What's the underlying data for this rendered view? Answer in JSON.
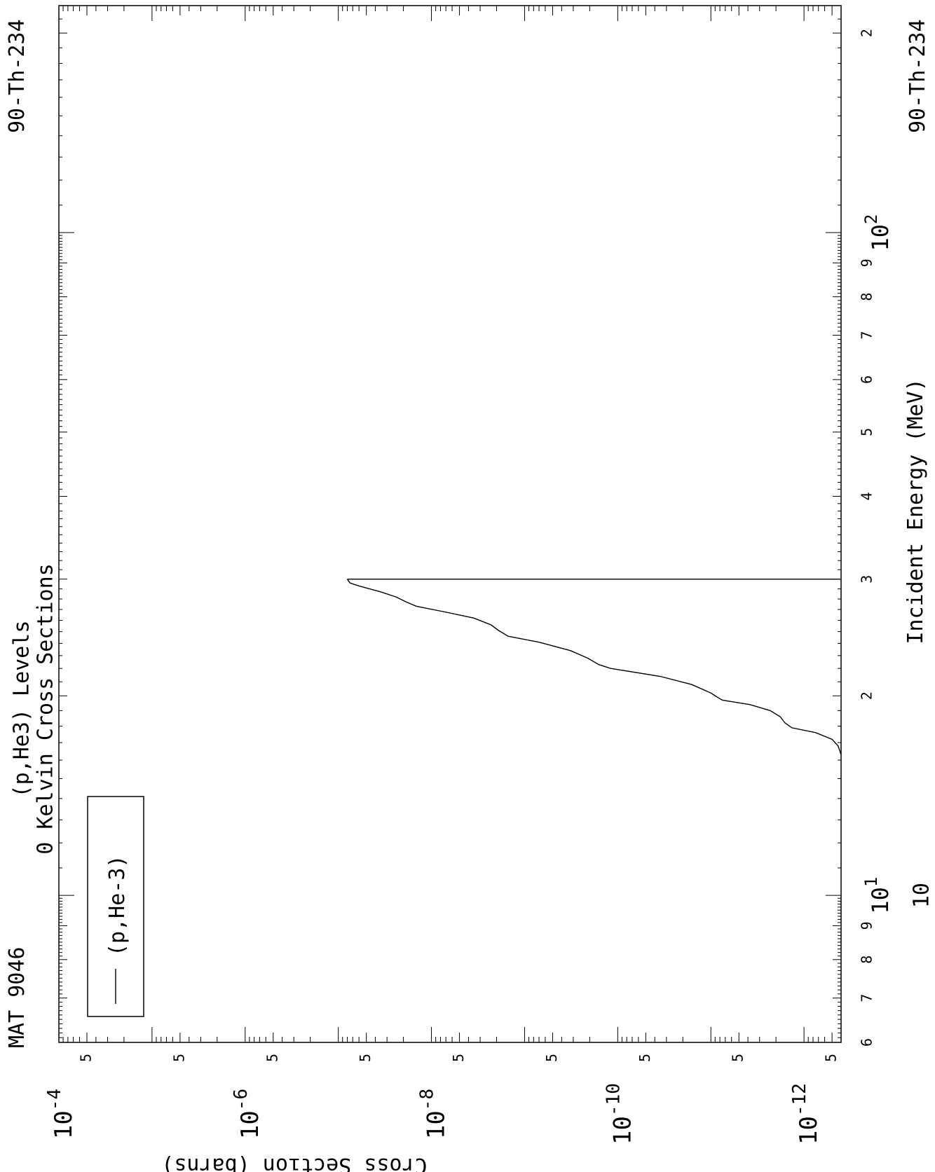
{
  "chart_data": {
    "type": "line",
    "title_line1": "(p,He3) Levels",
    "title_line2": "0 Kelvin Cross Sections",
    "material": "MAT 9046",
    "nuclide": "90-Th-234",
    "xlabel": "Incident Energy (MeV)",
    "ylabel": "Cross Section (barns)",
    "x_scale": "log",
    "y_scale": "log",
    "xlim": [
      6,
      220
    ],
    "ylim": [
      4e-13,
      0.0001
    ],
    "x_ticks": [
      {
        "value": 6,
        "label": "6"
      },
      {
        "value": 7,
        "label": "7"
      },
      {
        "value": 8,
        "label": "8"
      },
      {
        "value": 9,
        "label": "9"
      },
      {
        "value": 10,
        "label": "10"
      },
      {
        "value": 20,
        "label": "2"
      },
      {
        "value": 30,
        "label": "3"
      },
      {
        "value": 40,
        "label": "4"
      },
      {
        "value": 50,
        "label": "5"
      },
      {
        "value": 60,
        "label": "6"
      },
      {
        "value": 70,
        "label": "7"
      },
      {
        "value": 80,
        "label": "8"
      },
      {
        "value": 90,
        "label": "9"
      },
      {
        "value": 200,
        "label": "2"
      }
    ],
    "x_decades": [
      {
        "value": 10,
        "base": "10",
        "exp": "1"
      },
      {
        "value": 100,
        "base": "10",
        "exp": "2"
      }
    ],
    "y_decades": [
      {
        "value": 0.0001,
        "base": "10",
        "exp": "-4"
      },
      {
        "value": 1e-06,
        "base": "10",
        "exp": "-6"
      },
      {
        "value": 1e-08,
        "base": "10",
        "exp": "-8"
      },
      {
        "value": 1e-10,
        "base": "10",
        "exp": "-10"
      },
      {
        "value": 1e-12,
        "base": "10",
        "exp": "-12"
      }
    ],
    "y_five_label": "5",
    "grid": false,
    "legend": {
      "position": "bottom-left",
      "entries": [
        "(p,He-3)"
      ]
    },
    "series": [
      {
        "name": "(p,He-3)",
        "color": "#000000",
        "points": [
          [
            16.3,
            4e-13
          ],
          [
            16.8,
            4.3e-13
          ],
          [
            17.2,
            5e-13
          ],
          [
            17.6,
            7.5e-13
          ],
          [
            17.9,
            1.35e-12
          ],
          [
            18.2,
            1.6e-12
          ],
          [
            18.6,
            1.8e-12
          ],
          [
            19.0,
            2.3e-12
          ],
          [
            19.4,
            3.8e-12
          ],
          [
            19.7,
            7.5e-12
          ],
          [
            19.9,
            8.5e-12
          ],
          [
            20.2,
            1e-11
          ],
          [
            20.8,
            1.6e-11
          ],
          [
            21.4,
            3.5e-11
          ],
          [
            22.0,
            1.2e-10
          ],
          [
            22.3,
            1.6e-10
          ],
          [
            22.8,
            2.1e-10
          ],
          [
            23.4,
            3.2e-10
          ],
          [
            24.1,
            7e-10
          ],
          [
            24.6,
            1.5e-09
          ],
          [
            25.1,
            1.9e-09
          ],
          [
            25.6,
            2.3e-09
          ],
          [
            26.2,
            3.5e-09
          ],
          [
            26.8,
            7.5e-09
          ],
          [
            27.3,
            1.45e-08
          ],
          [
            27.7,
            1.85e-08
          ],
          [
            28.2,
            2.4e-08
          ],
          [
            28.7,
            3.5e-08
          ],
          [
            29.3,
            6e-08
          ],
          [
            29.6,
            7.5e-08
          ],
          [
            30.0,
            8e-08
          ]
        ]
      }
    ],
    "threshold_line_x": 30.0
  },
  "legend_label": "(p,He-3)"
}
